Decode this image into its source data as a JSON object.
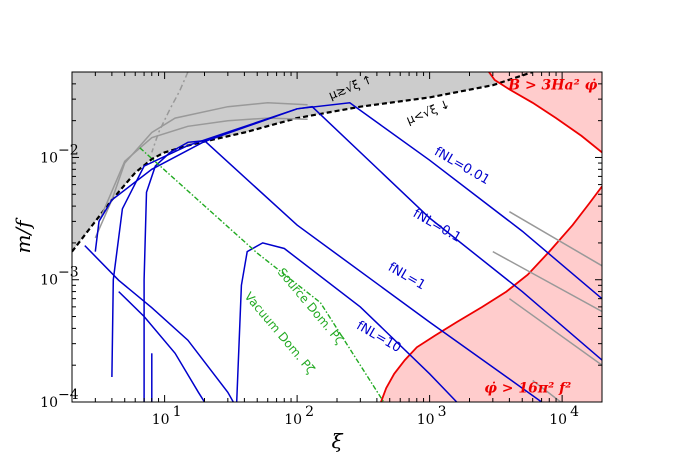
{
  "chart_data": {
    "type": "line",
    "title": "",
    "xlabel": "ξ",
    "ylabel": "m/f",
    "xscale": "log",
    "yscale": "log",
    "xlim": [
      2,
      20000
    ],
    "ylim": [
      0.0001,
      0.05
    ],
    "xticks": [
      10,
      100,
      1000,
      10000
    ],
    "xtick_labels": [
      "10",
      "10",
      "10",
      "10"
    ],
    "xtick_exponents": [
      "1",
      "2",
      "3",
      "4"
    ],
    "yticks": [
      0.0001,
      0.001,
      0.01
    ],
    "ytick_labels": [
      "10",
      "10",
      "10"
    ],
    "ytick_exponents": [
      "−4",
      "−3",
      "−2"
    ],
    "grid": false,
    "colors": {
      "excluded_gray": "#cccccc",
      "excluded_red": "#ffcccc",
      "red_line": "#ee0000",
      "fnl_line": "#0000cc",
      "gray_line": "#999999",
      "green_line": "#22aa22",
      "boundary": "#000000"
    },
    "regions": [
      {
        "name": "gray-excluded",
        "boundary": [
          [
            2,
            0.0017
          ],
          [
            3,
            0.003
          ],
          [
            4,
            0.0045
          ],
          [
            6,
            0.0075
          ],
          [
            8,
            0.0097
          ],
          [
            10,
            0.011
          ],
          [
            15,
            0.0125
          ],
          [
            20,
            0.0135
          ],
          [
            40,
            0.016
          ],
          [
            100,
            0.021
          ],
          [
            300,
            0.026
          ],
          [
            1000,
            0.031
          ],
          [
            3000,
            0.039
          ],
          [
            6000,
            0.05
          ]
        ]
      },
      {
        "name": "red-upper",
        "boundary": [
          [
            2800,
            0.05
          ],
          [
            3100,
            0.043
          ],
          [
            4000,
            0.036
          ],
          [
            6000,
            0.028
          ],
          [
            9000,
            0.021
          ],
          [
            14000,
            0.015
          ],
          [
            20000,
            0.011
          ]
        ]
      },
      {
        "name": "red-lower",
        "boundary": [
          [
            430,
            0.0001
          ],
          [
            470,
            0.00013
          ],
          [
            540,
            0.00017
          ],
          [
            650,
            0.00022
          ],
          [
            800,
            0.00028
          ],
          [
            1100,
            0.00035
          ],
          [
            1600,
            0.00045
          ],
          [
            2500,
            0.0006
          ],
          [
            3800,
            0.0008
          ],
          [
            5500,
            0.0011
          ],
          [
            8000,
            0.0017
          ],
          [
            12000,
            0.0028
          ],
          [
            16000,
            0.0042
          ],
          [
            20000,
            0.0058
          ]
        ]
      }
    ],
    "series": [
      {
        "name": "fNL=0.01",
        "values": [
          [
            3,
            0.0017
          ],
          [
            3.2,
            0.003
          ],
          [
            4,
            0.0045
          ],
          [
            8,
            0.008
          ],
          [
            20,
            0.0135
          ],
          [
            100,
            0.025
          ],
          [
            250,
            0.028
          ],
          [
            1000,
            0.0095
          ],
          [
            5000,
            0.0025
          ],
          [
            20000,
            0.0007
          ]
        ]
      },
      {
        "name": "fNL=0.1",
        "values": [
          [
            4,
            0.00016
          ],
          [
            4.1,
            0.001
          ],
          [
            4.8,
            0.0038
          ],
          [
            7,
            0.0085
          ],
          [
            15,
            0.0125
          ],
          [
            100,
            0.025
          ],
          [
            130,
            0.026
          ],
          [
            1000,
            0.0032
          ],
          [
            5000,
            0.0008
          ],
          [
            20000,
            0.00022
          ]
        ]
      },
      {
        "name": "fNL=1",
        "values": [
          [
            7,
            0.0001
          ],
          [
            7,
            0.001
          ],
          [
            7.3,
            0.0052
          ],
          [
            8.5,
            0.0085
          ],
          [
            11,
            0.011
          ],
          [
            15,
            0.0133
          ],
          [
            20,
            0.0137
          ],
          [
            100,
            0.0028
          ],
          [
            1000,
            0.00045
          ],
          [
            5000,
            0.00013
          ],
          [
            7000,
            0.0001
          ]
        ]
      },
      {
        "name": "fNL=10",
        "values": [
          [
            35,
            0.0001
          ],
          [
            38,
            0.0009
          ],
          [
            42,
            0.0017
          ],
          [
            55,
            0.002
          ],
          [
            80,
            0.0018
          ],
          [
            300,
            0.0006
          ],
          [
            1000,
            0.00017
          ],
          [
            1600,
            0.0001
          ]
        ]
      },
      {
        "name": "",
        "values": [
          [
            8,
            0.0001
          ],
          [
            8,
            0.00025
          ]
        ]
      },
      {
        "name": "",
        "values": [
          [
            2.5,
            0.0019
          ],
          [
            4.5,
            0.00099
          ],
          [
            8,
            0.00059
          ],
          [
            15,
            0.00032
          ],
          [
            30,
            0.00012
          ],
          [
            33,
            0.0001
          ]
        ]
      },
      {
        "name": "",
        "values": [
          [
            4.5,
            0.0008
          ],
          [
            7,
            0.0005
          ],
          [
            12,
            0.00025
          ],
          [
            18,
            0.00012
          ],
          [
            20,
            0.0001
          ]
        ]
      }
    ],
    "green_line": [
      [
        6.5,
        0.012
      ],
      [
        50,
        0.00165
      ],
      [
        150,
        0.00065
      ],
      [
        450,
        0.0001
      ]
    ],
    "gray_curves": [
      [
        [
          3,
          0.0022
        ],
        [
          4,
          0.0045
        ],
        [
          5,
          0.009
        ],
        [
          8,
          0.016
        ],
        [
          12,
          0.021
        ],
        [
          30,
          0.026
        ],
        [
          60,
          0.028
        ],
        [
          120,
          0.027
        ]
      ],
      [
        [
          3.2,
          0.003
        ],
        [
          5,
          0.0093
        ],
        [
          8,
          0.0145
        ],
        [
          15,
          0.018
        ],
        [
          30,
          0.02
        ],
        [
          60,
          0.021
        ],
        [
          120,
          0.0205
        ]
      ],
      [
        [
          15,
          0.05
        ],
        [
          13,
          0.035
        ],
        [
          11,
          0.025
        ],
        [
          9,
          0.016
        ],
        [
          8,
          0.011
        ]
      ],
      [
        [
          4000,
          0.0036
        ],
        [
          20000,
          0.0013
        ]
      ],
      [
        [
          3000,
          0.0017
        ],
        [
          20000,
          0.00055
        ]
      ],
      [
        [
          4000,
          0.0007
        ],
        [
          20000,
          0.0002
        ]
      ],
      [
        [
          6000,
          0.00015
        ],
        [
          20000,
          5.5e-05
        ]
      ]
    ],
    "annotations": [
      {
        "text": "B > 3Ha² φ̇",
        "x": 8500,
        "y": 0.036,
        "color": "#ee0000"
      },
      {
        "text": "φ̇ > 16π² f²",
        "x": 5500,
        "y": 0.00012,
        "color": "#ee0000"
      },
      {
        "text": "fNL=0.01",
        "x": 1700,
        "y": 0.008,
        "color": "#0000cc"
      },
      {
        "text": "fNL=0.1",
        "x": 1100,
        "y": 0.0026,
        "color": "#0000cc"
      },
      {
        "text": "fNL=1",
        "x": 650,
        "y": 0.001,
        "color": "#0000cc"
      },
      {
        "text": "fNL=10",
        "x": 400,
        "y": 0.00032,
        "color": "#0000cc"
      },
      {
        "text": "μ≳√ξ  ↑",
        "x": 260,
        "y": 0.035,
        "color": "#000000"
      },
      {
        "text": "μ<√ξ  ↓",
        "x": 1000,
        "y": 0.022,
        "color": "#000000"
      },
      {
        "text": "Source Dom. Pζ",
        "x": 120,
        "y": 0.00058,
        "color": "#22aa22"
      },
      {
        "text": "Vacuum Dom. Pζ",
        "x": 70,
        "y": 0.00035,
        "color": "#22aa22"
      }
    ]
  }
}
